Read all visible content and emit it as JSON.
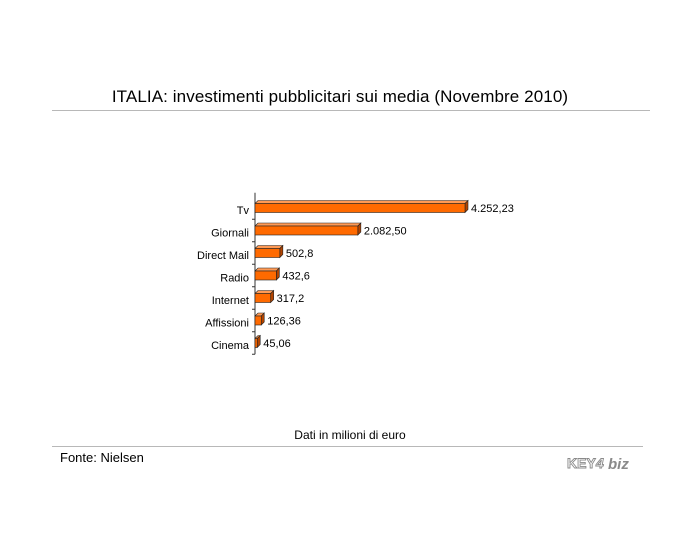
{
  "header": {
    "title": "ITALIA: investimenti pubblicitari sui media (Novembre 2010)"
  },
  "footer": {
    "caption": "Dati in milioni di euro",
    "source": "Fonte: Nielsen",
    "logo_text": "KEY4biz"
  },
  "colors": {
    "bar_front": "#ff6a00",
    "bar_top": "#ff9a55",
    "bar_side": "#b34400",
    "bar_outline": "#222222",
    "rule": "#b8b8b8"
  },
  "chart_data": {
    "type": "bar",
    "orientation": "horizontal",
    "categories": [
      "Tv",
      "Giornali",
      "Direct Mail",
      "Radio",
      "Internet",
      "Affissioni",
      "Cinema"
    ],
    "values": [
      4252.23,
      2082.5,
      502.8,
      432.6,
      317.2,
      126.36,
      45.06
    ],
    "value_labels": [
      "4.252,23",
      "2.082,50",
      "502,8",
      "432,6",
      "317,2",
      "126,36",
      "45,06"
    ],
    "xlim": [
      0,
      4252.23
    ],
    "legend": "none",
    "grid": false
  }
}
